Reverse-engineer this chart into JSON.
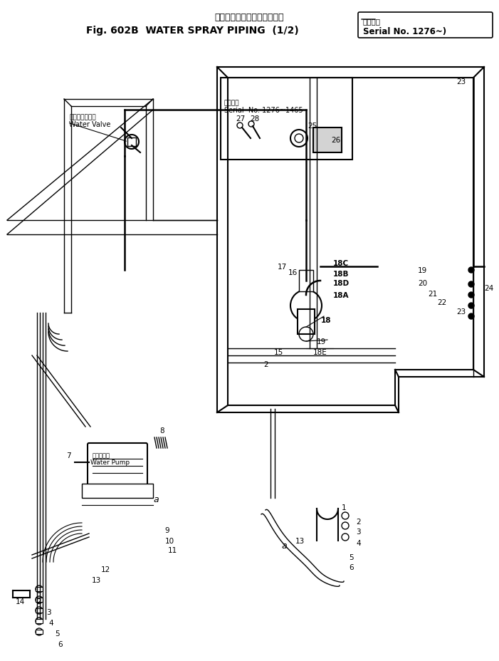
{
  "title_jp": "ウォータスプレイパイピング",
  "title_en": "Fig. 602B  WATER SPRAY PIPING  (1/2)",
  "title_serial_jp": "適用号機",
  "title_serial": "Serial No. 1276~)",
  "inset_serial_jp": "適用号機",
  "inset_serial": "Serial  No. 1276~1465",
  "water_valve_jp": "ウォータバルブ",
  "water_valve_en": "Water Valve",
  "water_pump_jp": "散水ポンプ",
  "water_pump_en": "Water Pump",
  "bg_color": "#ffffff",
  "line_color": "#000000",
  "fig_width": 7.01,
  "fig_height": 9.29,
  "dpi": 100
}
